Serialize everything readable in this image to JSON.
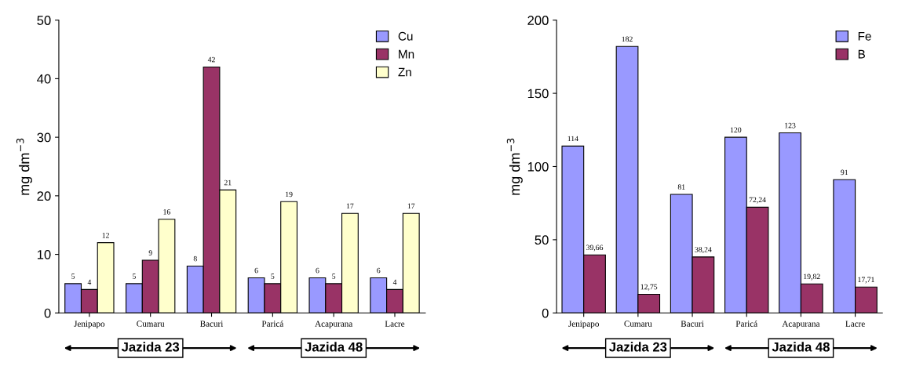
{
  "chart_data": [
    {
      "type": "bar",
      "ylabel": "mg dm$^{−3}$",
      "categories": [
        "Jenipapo",
        "Cumaru",
        "Bacuri",
        "Paricá",
        "Acapurana",
        "Lacre"
      ],
      "series": [
        {
          "name": "Cu",
          "color": "#9999ff",
          "values": [
            5,
            5,
            8,
            6,
            6,
            6
          ]
        },
        {
          "name": "Mn",
          "color": "#993366",
          "values": [
            4,
            9,
            42,
            5,
            5,
            4
          ]
        },
        {
          "name": "Zn",
          "color": "#ffffcc",
          "values": [
            12,
            16,
            21,
            19,
            17,
            17
          ]
        }
      ],
      "ylim": [
        0,
        50
      ],
      "yticks": [
        0,
        10,
        20,
        30,
        40,
        50
      ],
      "data_labels": true,
      "legend": "top right",
      "grid": false,
      "annotations": [
        "Jazida 23",
        "Jazida 48"
      ]
    },
    {
      "type": "bar",
      "ylabel": "mg dm$^{−3}$",
      "categories": [
        "Jenipapo",
        "Cumaru",
        "Bacuri",
        "Paricá",
        "Acapurana",
        "Lacre"
      ],
      "series": [
        {
          "name": "Fe",
          "color": "#9999ff",
          "values": [
            114,
            182,
            81,
            120,
            123,
            91
          ],
          "value_labels": [
            "114",
            "182",
            "81",
            "120",
            "123",
            "91"
          ]
        },
        {
          "name": "B",
          "color": "#993366",
          "values": [
            39.66,
            12.75,
            38.24,
            72.24,
            19.82,
            17.71
          ],
          "value_labels": [
            "39,66",
            "12,75",
            "38,24",
            "72,24",
            "19,82",
            "17,71"
          ]
        }
      ],
      "ylim": [
        0,
        200
      ],
      "yticks": [
        0,
        50,
        100,
        150,
        200
      ],
      "legend": "top right",
      "grid": false,
      "annotations": [
        "Jazida 23",
        "Jazida 48"
      ]
    }
  ]
}
